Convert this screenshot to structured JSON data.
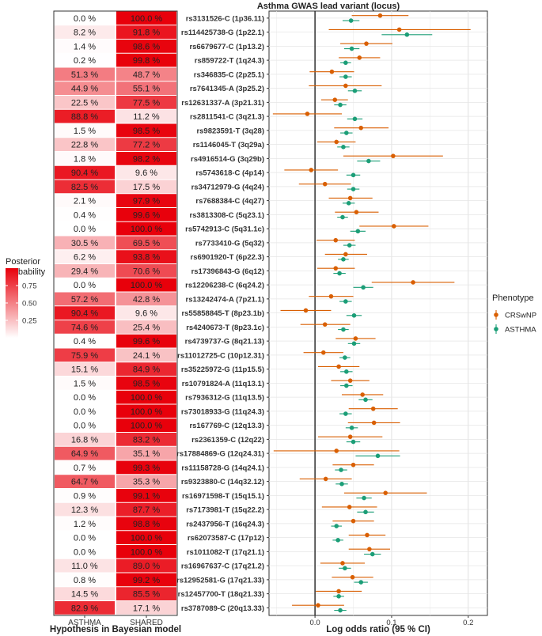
{
  "chart_data": [
    {
      "type": "heatmap",
      "title": "",
      "xlabel": "Hypothesis in Bayesian model",
      "ylabel": "",
      "columns": [
        "ASTHMA",
        "SHARED"
      ],
      "rows": [
        "rs3131526-C (1p36.11)",
        "rs114425738-G (1p22.1)",
        "rs6679677-C (1p13.2)",
        "rs859722-T (1q24.3)",
        "rs346835-C (2p25.1)",
        "rs7641345-A (3p25.2)",
        "rs12631337-A (3p21.31)",
        "rs2811541-C (3q21.3)",
        "rs9823591-T (3q28)",
        "rs1146045-T (3q29a)",
        "rs4916514-G (3q29b)",
        "rs5743618-C (4p14)",
        "rs34712979-G (4q24)",
        "rs7688384-C (4q27)",
        "rs3813308-C (5q23.1)",
        "rs5742913-C (5q31.1c)",
        "rs7733410-G (5q32)",
        "rs6901920-T (6p22.3)",
        "rs17396843-G (6q12)",
        "rs12206238-C (6q24.2)",
        "rs13242474-A (7p21.1)",
        "rs55858845-T (8p23.1b)",
        "rs4240673-T (8p23.1c)",
        "rs4739737-G (8q21.13)",
        "rs11012725-C (10p12.31)",
        "rs35225972-G (11p15.5)",
        "rs10791824-A (11q13.1)",
        "rs7936312-G (11q13.5)",
        "rs73018933-G (11q24.3)",
        "rs167769-C (12q13.3)",
        "rs2361359-C (12q22)",
        "rs17884869-G (12q24.31)",
        "rs11158728-G (14q24.1)",
        "rs9323880-C (14q32.12)",
        "rs16971598-T (15q15.1)",
        "rs7173981-T (15q22.2)",
        "rs2437956-T (16q24.3)",
        "rs62073587-C (17p12)",
        "rs1011082-T (17q21.1)",
        "rs16967637-C (17q21.2)",
        "rs12952581-G (17q21.33)",
        "rs12457700-T (18q21.33)",
        "rs3787089-C (20q13.33)"
      ],
      "asthma": [
        0.0,
        8.2,
        1.4,
        0.2,
        51.3,
        44.9,
        22.5,
        88.8,
        1.5,
        22.8,
        1.8,
        90.4,
        82.5,
        2.1,
        0.4,
        0.0,
        30.5,
        6.2,
        29.4,
        0.0,
        57.2,
        90.4,
        74.6,
        0.4,
        75.9,
        15.1,
        1.5,
        0.0,
        0.0,
        0.0,
        16.8,
        64.9,
        0.7,
        64.7,
        0.9,
        12.3,
        1.2,
        0.0,
        0.0,
        11.0,
        0.8,
        14.5,
        82.9
      ],
      "shared": [
        100.0,
        91.8,
        98.6,
        99.8,
        48.7,
        55.1,
        77.5,
        11.2,
        98.5,
        77.2,
        98.2,
        9.6,
        17.5,
        97.9,
        99.6,
        100.0,
        69.5,
        93.8,
        70.6,
        100.0,
        42.8,
        9.6,
        25.4,
        99.6,
        24.1,
        84.9,
        98.5,
        100.0,
        100.0,
        100.0,
        83.2,
        35.1,
        99.3,
        35.3,
        99.1,
        87.7,
        98.8,
        100.0,
        100.0,
        89.0,
        99.2,
        85.5,
        17.1
      ],
      "asthma_labels": [
        "0.0 %",
        "8.2 %",
        "1.4 %",
        "0.2 %",
        "51.3 %",
        "44.9 %",
        "22.5 %",
        "88.8 %",
        "1.5 %",
        "22.8 %",
        "1.8 %",
        "90.4 %",
        "82.5 %",
        "2.1 %",
        "0.4 %",
        "0.0 %",
        "30.5 %",
        "6.2 %",
        "29.4 %",
        "0.0 %",
        "57.2 %",
        "90.4 %",
        "74.6 %",
        "0.4 %",
        "75.9 %",
        "15.1 %",
        "1.5 %",
        "0.0 %",
        "0.0 %",
        "0.0 %",
        "16.8 %",
        "64.9 %",
        "0.7 %",
        "64.7 %",
        "0.9 %",
        "12.3 %",
        "1.2 %",
        "0.0 %",
        "0.0 %",
        "11.0 %",
        "0.8 %",
        "14.5 %",
        "82.9 %"
      ],
      "shared_labels": [
        "100.0 %",
        "91.8 %",
        "98.6 %",
        "99.8 %",
        "48.7 %",
        "55.1 %",
        "77.5 %",
        "11.2 %",
        "98.5 %",
        "77.2 %",
        "98.2 %",
        "9.6 %",
        "17.5 %",
        "97.9 %",
        "99.6 %",
        "100.0 %",
        "69.5 %",
        "93.8 %",
        "70.6 %",
        "100.0 %",
        "42.8 %",
        "9.6 %",
        "25.4 %",
        "99.6 %",
        "24.1 %",
        "84.9 %",
        "98.5 %",
        "100.0 %",
        "100.0 %",
        "100.0 %",
        "83.2 %",
        "35.1 %",
        "99.3 %",
        "35.3 %",
        "99.1 %",
        "87.7 %",
        "98.8 %",
        "100.0 %",
        "100.0 %",
        "89.0 %",
        "99.2 %",
        "85.5 %",
        "17.1 %"
      ],
      "legend": {
        "title": "Posterior\nprobability",
        "ticks": [
          "0.75",
          "0.50",
          "0.25"
        ],
        "tick_values": [
          0.75,
          0.5,
          0.25
        ],
        "placement": "left"
      },
      "colors": {
        "low": "#ffffff",
        "high": "#e8000b"
      }
    },
    {
      "type": "scatter",
      "subtype": "forest",
      "title": "Asthma GWAS lead variant (locus)",
      "xlabel": "Log odds ratio (95 % CI)",
      "ylabel": "",
      "xlim": [
        -0.06,
        0.225
      ],
      "xticks": [
        0.0,
        0.1,
        0.2
      ],
      "xtick_labels": [
        "0.0",
        "0.1",
        "0.2"
      ],
      "reference_line": 0,
      "grid": true,
      "legend": {
        "title": "Phenotype",
        "entries": [
          "CRSwNP",
          "ASTHMA"
        ],
        "placement": "right"
      },
      "series": [
        {
          "name": "CRSwNP",
          "color": "#d95f02",
          "estimates": [
            0.085,
            0.11,
            0.067,
            0.058,
            0.022,
            0.04,
            0.026,
            -0.01,
            0.06,
            0.028,
            0.102,
            -0.005,
            0.013,
            0.046,
            0.054,
            0.103,
            0.027,
            0.04,
            0.027,
            0.128,
            0.021,
            -0.012,
            0.013,
            0.053,
            0.011,
            0.031,
            0.046,
            0.062,
            0.076,
            0.077,
            0.046,
            0.028,
            0.05,
            0.014,
            0.092,
            0.045,
            0.05,
            0.068,
            0.071,
            0.036,
            0.049,
            0.031,
            0.004
          ],
          "lower": [
            0.048,
            0.018,
            0.033,
            0.031,
            -0.007,
            -0.008,
            0.008,
            -0.055,
            0.025,
            0.003,
            0.037,
            -0.04,
            -0.021,
            0.018,
            0.026,
            0.058,
            0.002,
            0.013,
            0.003,
            0.074,
            -0.008,
            -0.045,
            -0.019,
            0.027,
            -0.015,
            0.004,
            0.021,
            0.035,
            0.044,
            0.043,
            0.004,
            -0.054,
            0.023,
            -0.02,
            0.038,
            0.009,
            0.023,
            0.044,
            0.044,
            0.007,
            0.022,
            0.001,
            -0.03
          ],
          "upper": [
            0.122,
            0.203,
            0.101,
            0.085,
            0.051,
            0.087,
            0.043,
            0.035,
            0.096,
            0.053,
            0.167,
            0.03,
            0.047,
            0.075,
            0.083,
            0.148,
            0.052,
            0.068,
            0.052,
            0.182,
            0.05,
            0.021,
            0.046,
            0.079,
            0.037,
            0.058,
            0.071,
            0.089,
            0.108,
            0.111,
            0.088,
            0.11,
            0.077,
            0.048,
            0.146,
            0.081,
            0.077,
            0.092,
            0.098,
            0.065,
            0.076,
            0.061,
            0.038
          ]
        },
        {
          "name": "ASTHMA",
          "color": "#1b9e77",
          "estimates": [
            0.047,
            0.12,
            0.048,
            0.04,
            0.04,
            0.052,
            0.033,
            0.052,
            0.041,
            0.037,
            0.07,
            0.05,
            0.05,
            0.044,
            0.036,
            0.056,
            0.045,
            0.037,
            0.032,
            0.063,
            0.04,
            0.051,
            0.037,
            0.051,
            0.039,
            0.041,
            0.041,
            0.066,
            0.04,
            0.048,
            0.05,
            0.082,
            0.034,
            0.035,
            0.064,
            0.066,
            0.028,
            0.03,
            0.075,
            0.039,
            0.06,
            0.031,
            0.033
          ],
          "lower": [
            0.036,
            0.087,
            0.038,
            0.033,
            0.032,
            0.043,
            0.025,
            0.042,
            0.033,
            0.029,
            0.055,
            0.041,
            0.042,
            0.036,
            0.029,
            0.046,
            0.037,
            0.03,
            0.024,
            0.05,
            0.032,
            0.041,
            0.03,
            0.043,
            0.032,
            0.033,
            0.033,
            0.057,
            0.032,
            0.04,
            0.041,
            0.053,
            0.026,
            0.027,
            0.054,
            0.055,
            0.021,
            0.023,
            0.064,
            0.031,
            0.051,
            0.024,
            0.025
          ],
          "upper": [
            0.058,
            0.153,
            0.058,
            0.047,
            0.048,
            0.061,
            0.041,
            0.062,
            0.049,
            0.045,
            0.085,
            0.059,
            0.058,
            0.052,
            0.043,
            0.066,
            0.053,
            0.044,
            0.04,
            0.076,
            0.048,
            0.061,
            0.044,
            0.059,
            0.046,
            0.049,
            0.049,
            0.075,
            0.048,
            0.056,
            0.059,
            0.111,
            0.042,
            0.043,
            0.074,
            0.077,
            0.035,
            0.037,
            0.086,
            0.047,
            0.069,
            0.038,
            0.041
          ]
        }
      ]
    }
  ]
}
